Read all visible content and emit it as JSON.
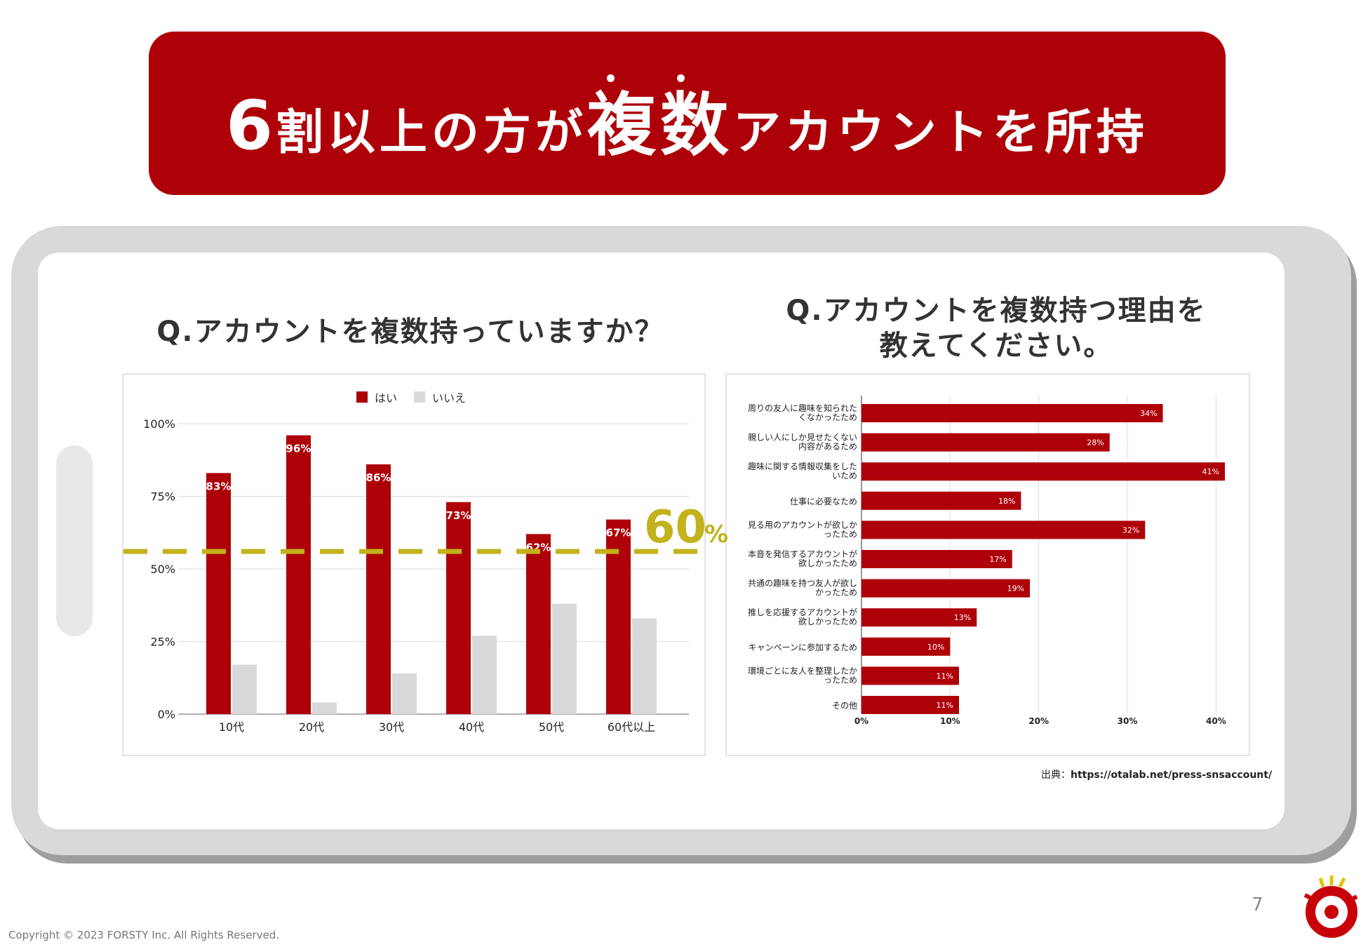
{
  "header": {
    "title_num": "6",
    "title_pre": "割以上の方が",
    "title_emph": "複数",
    "title_post": "アカウントを所持"
  },
  "left_question": "Q.アカウントを複数持っていますか？",
  "right_question_line1": "Q.アカウントを複数持つ理由を",
  "right_question_line2": "教えてください。",
  "annotation": {
    "value": "60",
    "unit": "%",
    "level": 56,
    "color": "#c2b21b"
  },
  "colors": {
    "brand": "#ae0008",
    "secondary": "#d9d9d9"
  },
  "chart_data": [
    {
      "type": "bar",
      "title": "Q.アカウントを複数持っていますか？",
      "categories": [
        "10代",
        "20代",
        "30代",
        "40代",
        "50代",
        "60代以上"
      ],
      "series": [
        {
          "name": "はい",
          "values": [
            83,
            96,
            86,
            73,
            62,
            67
          ],
          "labels": [
            "83%",
            "96%",
            "86%",
            "73%",
            "62%",
            "67%"
          ]
        },
        {
          "name": "いいえ",
          "values": [
            17,
            4,
            14,
            27,
            38,
            33
          ]
        }
      ],
      "ylim": [
        0,
        100
      ],
      "yticks": [
        "0%",
        "25%",
        "50%",
        "75%",
        "100%"
      ],
      "legend": "top-center"
    },
    {
      "type": "bar",
      "orientation": "horizontal",
      "title": "Q.アカウントを複数持つ理由を教えてください。",
      "categories": [
        [
          "周りの友人に趣味を知られた",
          "くなかったため"
        ],
        [
          "親しい人にしか見せたくない",
          "内容があるため"
        ],
        [
          "趣味に関する情報収集をした",
          "いため"
        ],
        [
          "仕事に必要なため"
        ],
        [
          "見る用のアカウントが欲しか",
          "ったため"
        ],
        [
          "本音を発信するアカウントが",
          "欲しかったため"
        ],
        [
          "共通の趣味を持つ友人が欲し",
          "かったため"
        ],
        [
          "推しを応援するアカウントが",
          "欲しかったため"
        ],
        [
          "キャンペーンに参加するため"
        ],
        [
          "環境ごとに友人を整理したか",
          "ったため"
        ],
        [
          "その他"
        ]
      ],
      "values": [
        34,
        28,
        41,
        18,
        32,
        17,
        19,
        13,
        10,
        11,
        11
      ],
      "labels": [
        "34%",
        "28%",
        "41%",
        "18%",
        "32%",
        "17%",
        "19%",
        "13%",
        "10%",
        "11%",
        "11%"
      ],
      "xlim": [
        0,
        41
      ],
      "xticks": [
        0,
        10,
        20,
        30,
        40
      ],
      "xtick_labels": [
        "0%",
        "10%",
        "20%",
        "30%",
        "40%"
      ]
    }
  ],
  "source": {
    "label": "出典：",
    "url": "https://otalab.net/press-snsaccount/"
  },
  "page_number": "7",
  "copyright": "Copyright © 2023 FORSTY Inc. All Rights Reserved."
}
